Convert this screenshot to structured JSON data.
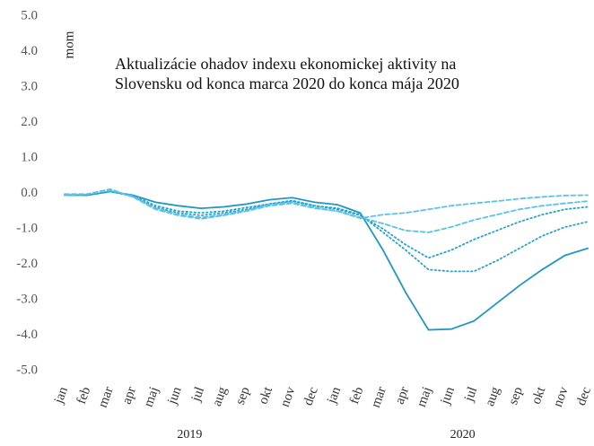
{
  "chart_data": {
    "type": "line",
    "title": "Aktualizácie ohadov indexu ekonomickej aktivity na Slovensku od konca marca 2020 do konca mája 2020",
    "y_label": "mom",
    "categories": [
      "jan",
      "feb",
      "mar",
      "apr",
      "maj",
      "jun",
      "jul",
      "aug",
      "sep",
      "okt",
      "nov",
      "dec",
      "jan",
      "feb",
      "mar",
      "apr",
      "maj",
      "jun",
      "jul",
      "aug",
      "sep",
      "okt",
      "nov",
      "dec"
    ],
    "groups": [
      {
        "label": "2019",
        "count": 12
      },
      {
        "label": "2020",
        "count": 12
      }
    ],
    "ylim": [
      -5,
      5
    ],
    "yticks": [
      {
        "value": 5,
        "label": "5.0"
      },
      {
        "value": 4,
        "label": "4.0"
      },
      {
        "value": 3,
        "label": "3.0"
      },
      {
        "value": 2,
        "label": "2.0"
      },
      {
        "value": 1,
        "label": "1.0"
      },
      {
        "value": 0,
        "label": "0.0"
      },
      {
        "value": -1,
        "label": "-1.0"
      },
      {
        "value": -2,
        "label": "-2.0"
      },
      {
        "value": -3,
        "label": "-3.0"
      },
      {
        "value": -4,
        "label": "-4.0"
      },
      {
        "value": -5,
        "label": "-5.0"
      }
    ],
    "series": [
      {
        "color": "#2196c4",
        "dash": "solid",
        "values": [
          -0.05,
          -0.05,
          0.05,
          -0.05,
          -0.25,
          -0.35,
          -0.42,
          -0.38,
          -0.3,
          -0.18,
          -0.12,
          -0.25,
          -0.32,
          -0.55,
          -1.6,
          -2.8,
          -3.85,
          -3.83,
          -3.6,
          -3.1,
          -2.6,
          -2.15,
          -1.75,
          -1.55
        ]
      },
      {
        "color": "#27a3d2",
        "dash": "dotted",
        "values": [
          -0.05,
          -0.05,
          0.05,
          -0.05,
          -0.35,
          -0.5,
          -0.55,
          -0.5,
          -0.4,
          -0.3,
          -0.2,
          -0.35,
          -0.42,
          -0.6,
          -1.1,
          -1.6,
          -2.15,
          -2.2,
          -2.2,
          -1.9,
          -1.55,
          -1.2,
          -0.95,
          -0.8
        ]
      },
      {
        "color": "#27a3d2",
        "dash": "dotted",
        "values": [
          -0.05,
          -0.05,
          0.05,
          -0.08,
          -0.4,
          -0.55,
          -0.62,
          -0.55,
          -0.45,
          -0.3,
          -0.22,
          -0.35,
          -0.45,
          -0.62,
          -1.0,
          -1.45,
          -1.82,
          -1.6,
          -1.3,
          -1.05,
          -0.8,
          -0.6,
          -0.45,
          -0.38
        ]
      },
      {
        "color": "#5bc2ea",
        "dash": "dashed",
        "values": [
          -0.05,
          -0.02,
          0.08,
          -0.08,
          -0.42,
          -0.6,
          -0.68,
          -0.6,
          -0.48,
          -0.32,
          -0.25,
          -0.4,
          -0.5,
          -0.68,
          -0.85,
          -1.05,
          -1.1,
          -0.95,
          -0.75,
          -0.6,
          -0.45,
          -0.35,
          -0.28,
          -0.22
        ]
      },
      {
        "color": "#5bc2ea",
        "dash": "dashed",
        "values": [
          -0.02,
          -0.02,
          0.12,
          -0.1,
          -0.45,
          -0.62,
          -0.72,
          -0.62,
          -0.5,
          -0.35,
          -0.28,
          -0.42,
          -0.5,
          -0.7,
          -0.6,
          -0.55,
          -0.45,
          -0.35,
          -0.28,
          -0.22,
          -0.15,
          -0.1,
          -0.06,
          -0.05
        ]
      }
    ]
  }
}
